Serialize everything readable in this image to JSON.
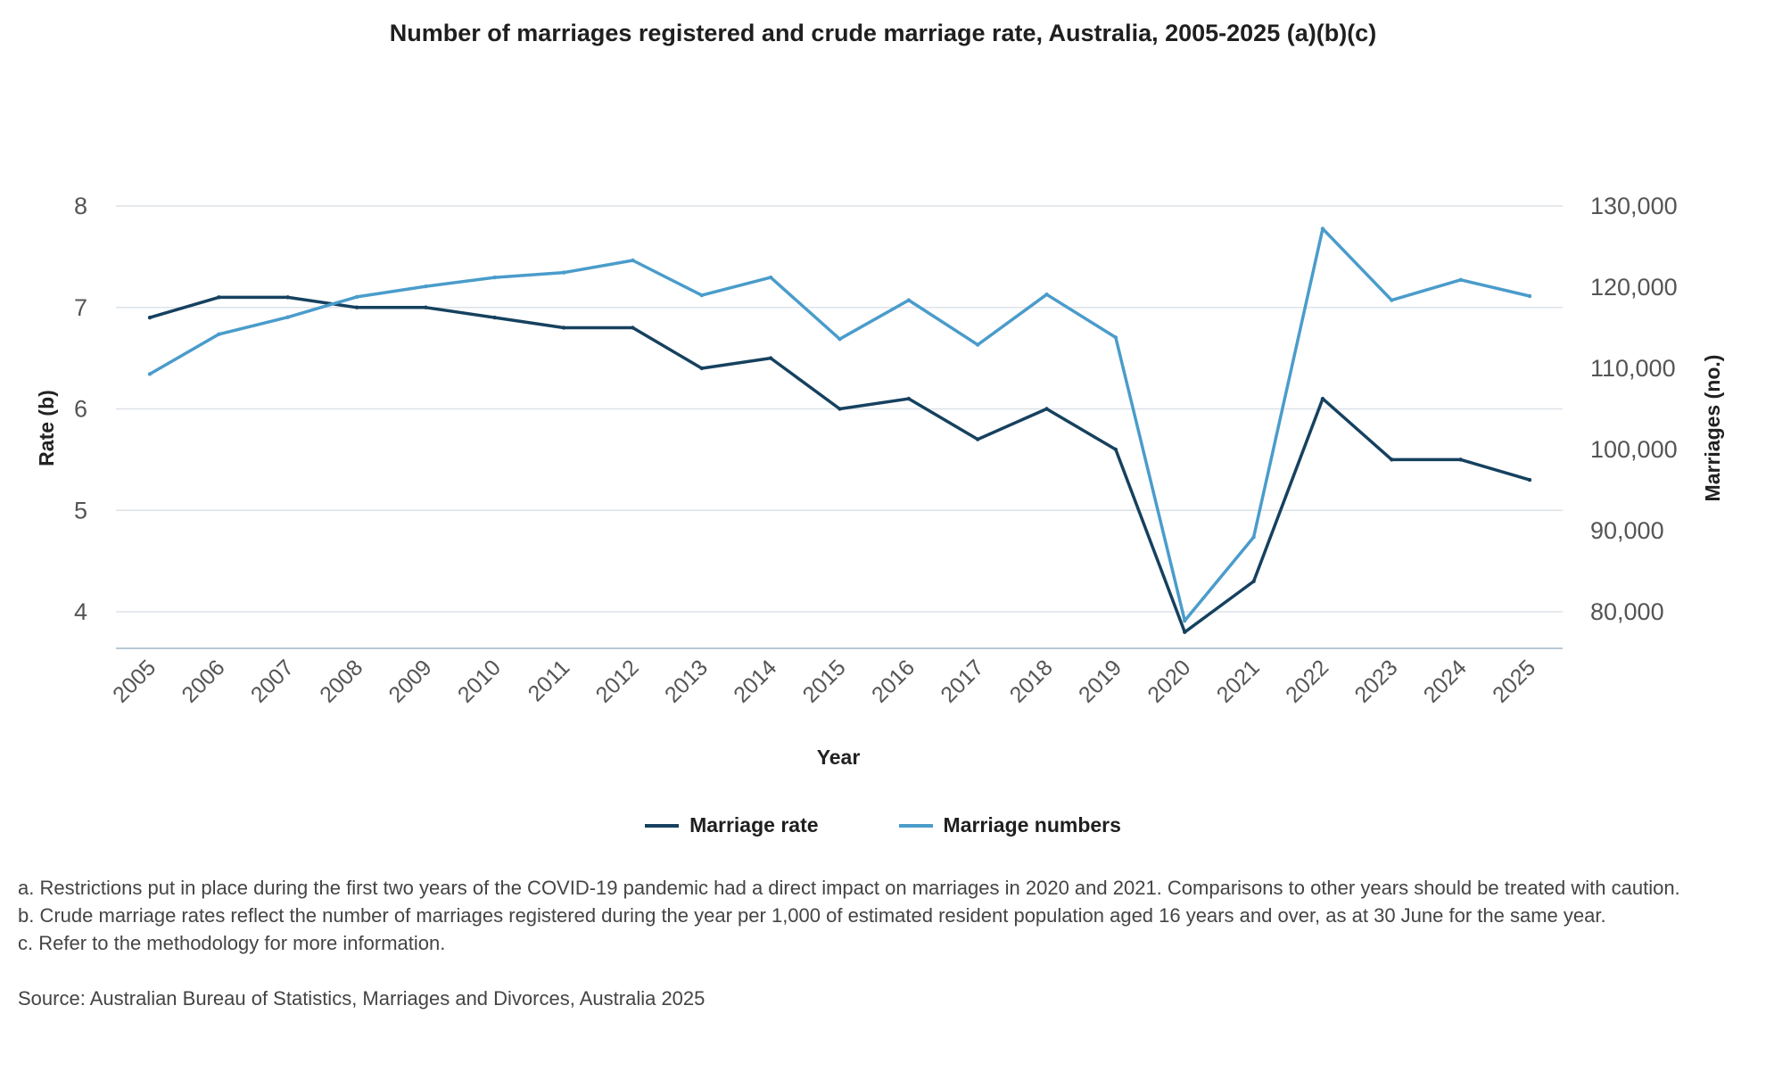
{
  "chart_data": {
    "type": "line",
    "title": "Number of marriages registered and crude marriage rate, Australia, 2005-2025 (a)(b)(c)",
    "xlabel": "Year",
    "ylabel_left": "Rate (b)",
    "ylabel_right": "Marriages (no.)",
    "categories": [
      "2005",
      "2006",
      "2007",
      "2008",
      "2009",
      "2010",
      "2011",
      "2012",
      "2013",
      "2014",
      "2015",
      "2016",
      "2017",
      "2018",
      "2019",
      "2020",
      "2021",
      "2022",
      "2023",
      "2024",
      "2025"
    ],
    "left_axis": {
      "ticks": [
        4,
        5,
        6,
        7,
        8
      ],
      "tick_labels": [
        "4",
        "5",
        "6",
        "7",
        "8"
      ]
    },
    "right_axis": {
      "ticks": [
        80000,
        90000,
        100000,
        110000,
        120000,
        130000
      ],
      "tick_labels": [
        "80,000",
        "90,000",
        "100,000",
        "110,000",
        "120,000",
        "130,000"
      ]
    },
    "grid": true,
    "legend_position": "bottom",
    "series": [
      {
        "name": "Marriage rate",
        "axis": "left",
        "color": "#16415f",
        "values": [
          6.9,
          7.1,
          7.1,
          7.0,
          7.0,
          6.9,
          6.8,
          6.8,
          6.4,
          6.5,
          6.0,
          6.1,
          5.7,
          6.0,
          5.6,
          3.8,
          4.3,
          6.1,
          5.5,
          5.5,
          5.3
        ]
      },
      {
        "name": "Marriage numbers",
        "axis": "right",
        "color": "#4a9ccb",
        "values": [
          109300,
          114200,
          116300,
          118800,
          120100,
          121200,
          121800,
          123300,
          119000,
          121200,
          113600,
          118400,
          112900,
          119100,
          113800,
          78900,
          89200,
          127200,
          118400,
          120900,
          118900
        ]
      }
    ]
  },
  "footnotes": [
    "a. Restrictions put in place during the first two years of the COVID-19 pandemic had a direct impact on marriages in 2020 and 2021. Comparisons to other years should be treated with caution.",
    "b. Crude marriage rates reflect the number of marriages registered during the year per 1,000 of estimated resident population aged 16 years and over, as at 30 June for the same year.",
    "c. Refer to the methodology for more information."
  ],
  "source": "Source: Australian Bureau of Statistics, Marriages and Divorces, Australia 2025"
}
